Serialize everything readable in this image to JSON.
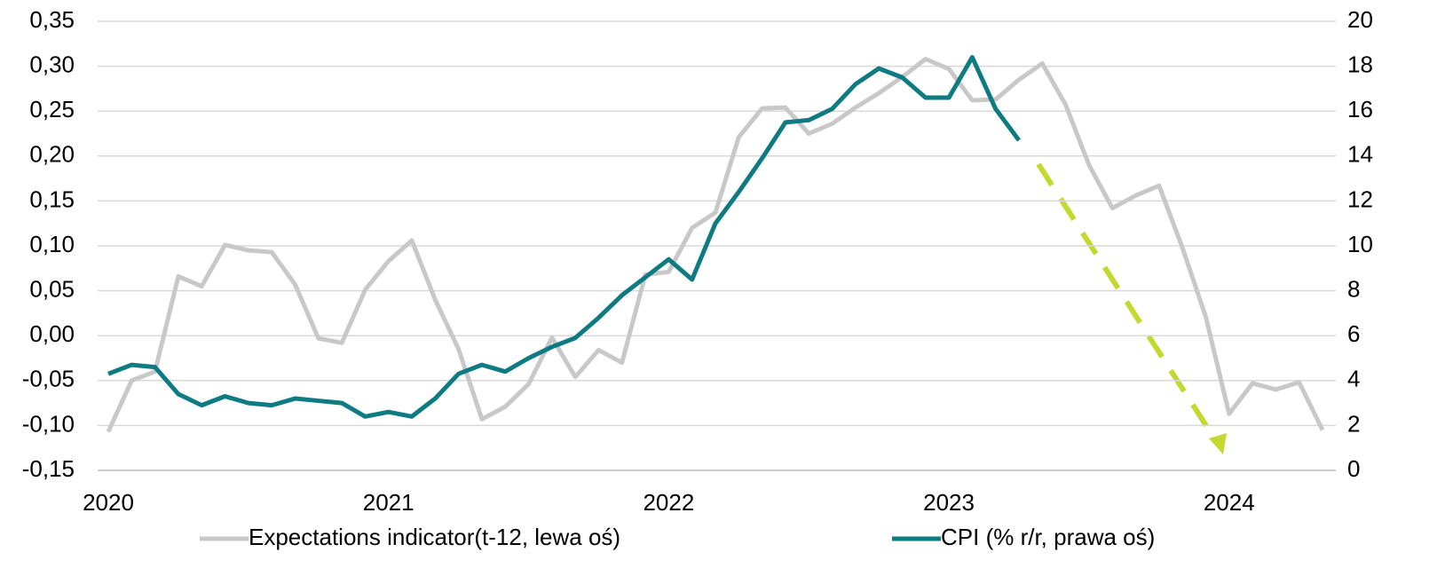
{
  "chart_data": {
    "type": "line",
    "categories": [
      "2020",
      null,
      null,
      null,
      null,
      null,
      null,
      null,
      null,
      null,
      null,
      null,
      "2021",
      null,
      null,
      null,
      null,
      null,
      null,
      null,
      null,
      null,
      null,
      null,
      "2022",
      null,
      null,
      null,
      null,
      null,
      null,
      null,
      null,
      null,
      null,
      null,
      "2023",
      null,
      null,
      null,
      null,
      null,
      null,
      null,
      null,
      null,
      null,
      null,
      "2024",
      null,
      null,
      null,
      null
    ],
    "series": [
      {
        "name": "Expectations indicator(t-12, lewa oś)",
        "color": "#c8c8c8",
        "axis": "y",
        "values": [
          -0.107,
          -0.05,
          -0.04,
          0.066,
          0.055,
          0.101,
          0.095,
          0.093,
          0.057,
          -0.003,
          -0.008,
          0.051,
          0.083,
          0.106,
          0.04,
          -0.015,
          -0.093,
          -0.079,
          -0.054,
          -0.002,
          -0.046,
          -0.016,
          -0.03,
          0.068,
          0.071,
          0.12,
          0.137,
          0.221,
          0.253,
          0.254,
          0.225,
          0.236,
          0.254,
          0.27,
          0.288,
          0.308,
          0.297,
          0.262,
          0.263,
          0.285,
          0.303,
          0.257,
          0.19,
          0.142,
          0.156,
          0.167,
          0.098,
          0.021,
          -0.087,
          -0.053,
          -0.06,
          -0.052,
          -0.105
        ]
      },
      {
        "name": "CPI (% r/r, prawa oś)",
        "color": "#0e7a82",
        "axis": "y2",
        "values": [
          4.3,
          4.7,
          4.6,
          3.4,
          2.9,
          3.3,
          3.0,
          2.9,
          3.2,
          3.1,
          3.0,
          2.4,
          2.6,
          2.4,
          3.2,
          4.3,
          4.7,
          4.4,
          5.0,
          5.5,
          5.9,
          6.8,
          7.8,
          8.6,
          9.4,
          8.5,
          11.0,
          12.4,
          13.9,
          15.5,
          15.6,
          16.1,
          17.2,
          17.9,
          17.5,
          16.6,
          16.6,
          18.4,
          16.1,
          14.7,
          null,
          null,
          null,
          null,
          null,
          null,
          null,
          null,
          null,
          null,
          null,
          null,
          null
        ]
      }
    ],
    "ylim": [
      -0.15,
      0.35
    ],
    "yticks": [
      {
        "value": -0.15,
        "label": "-0,15"
      },
      {
        "value": -0.1,
        "label": "-0,10"
      },
      {
        "value": -0.05,
        "label": "-0,05"
      },
      {
        "value": 0,
        "label": "0,00"
      },
      {
        "value": 0.05,
        "label": "0,05"
      },
      {
        "value": 0.1,
        "label": "0,10"
      },
      {
        "value": 0.15,
        "label": "0,15"
      },
      {
        "value": 0.2,
        "label": "0,20"
      },
      {
        "value": 0.25,
        "label": "0,25"
      },
      {
        "value": 0.3,
        "label": "0,30"
      },
      {
        "value": 0.35,
        "label": "0,35"
      }
    ],
    "y2lim": [
      0,
      20
    ],
    "y2ticks": [
      0,
      2,
      4,
      6,
      8,
      10,
      12,
      14,
      16,
      18,
      20
    ],
    "grid": true,
    "legend": "bottom"
  }
}
